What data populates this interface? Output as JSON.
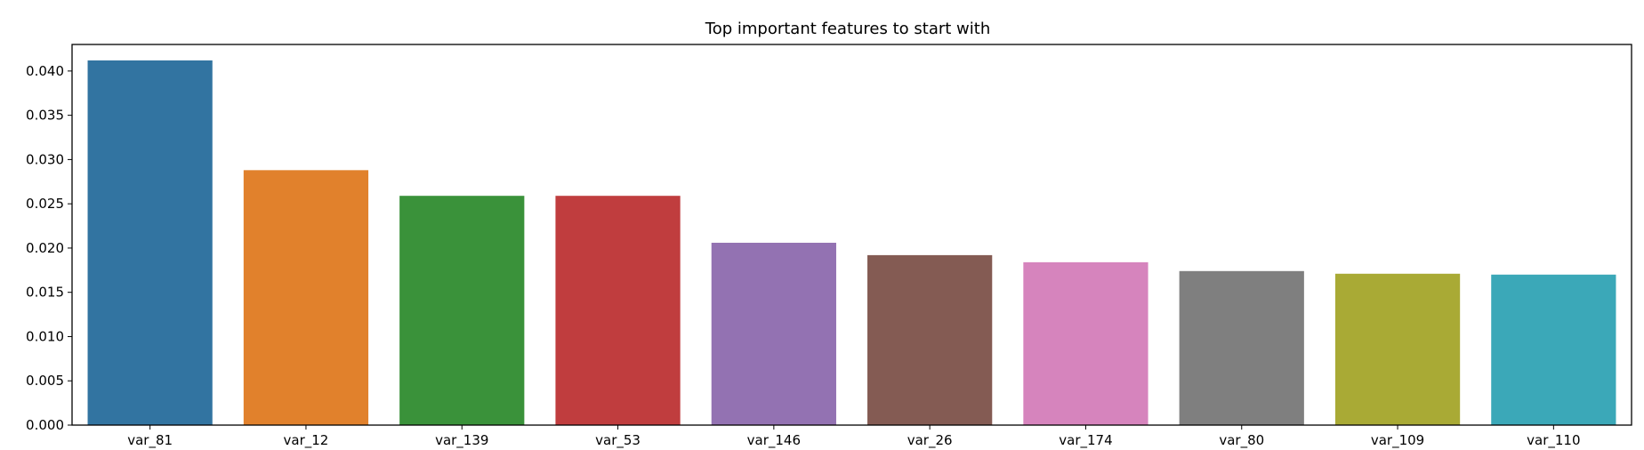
{
  "chart_data": {
    "type": "bar",
    "title": "Top important features to start with",
    "xlabel": "",
    "ylabel": "",
    "categories": [
      "var_81",
      "var_12",
      "var_139",
      "var_53",
      "var_146",
      "var_26",
      "var_174",
      "var_80",
      "var_109",
      "var_110"
    ],
    "values": [
      0.0412,
      0.0288,
      0.0259,
      0.0259,
      0.0206,
      0.0192,
      0.0184,
      0.0174,
      0.0171,
      0.017
    ],
    "colors": [
      "#3274a1",
      "#e1812c",
      "#3a923a",
      "#c03d3e",
      "#9372b2",
      "#845b53",
      "#d684bd",
      "#7f7f7f",
      "#a9aa35",
      "#3ba8b8"
    ],
    "ylim": [
      0,
      0.043
    ],
    "yticks": [
      "0.000",
      "0.005",
      "0.010",
      "0.015",
      "0.020",
      "0.025",
      "0.030",
      "0.035",
      "0.040"
    ],
    "grid": false,
    "legend": "none"
  }
}
